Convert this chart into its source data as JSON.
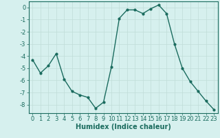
{
  "x": [
    0,
    1,
    2,
    3,
    4,
    5,
    6,
    7,
    8,
    9,
    10,
    11,
    12,
    13,
    14,
    15,
    16,
    17,
    18,
    19,
    20,
    21,
    22,
    23
  ],
  "y": [
    -4.3,
    -5.4,
    -4.8,
    -3.8,
    -5.9,
    -6.9,
    -7.2,
    -7.4,
    -8.3,
    -7.8,
    -4.9,
    -0.9,
    -0.2,
    -0.2,
    -0.5,
    -0.1,
    0.2,
    -0.5,
    -3.0,
    -5.0,
    -6.1,
    -6.9,
    -7.7,
    -8.4
  ],
  "line_color": "#1a6b5e",
  "marker": "o",
  "marker_size": 2,
  "bg_color": "#d6f0ee",
  "grid_color": "#c0dcd8",
  "xlabel": "Humidex (Indice chaleur)",
  "xlim_min": -0.5,
  "xlim_max": 23.5,
  "ylim_min": -8.7,
  "ylim_max": 0.5,
  "yticks": [
    0,
    -1,
    -2,
    -3,
    -4,
    -5,
    -6,
    -7,
    -8
  ],
  "xticks": [
    0,
    1,
    2,
    3,
    4,
    5,
    6,
    7,
    8,
    9,
    10,
    11,
    12,
    13,
    14,
    15,
    16,
    17,
    18,
    19,
    20,
    21,
    22,
    23
  ],
  "xlabel_fontsize": 7,
  "tick_fontsize": 6,
  "line_width": 1.0
}
